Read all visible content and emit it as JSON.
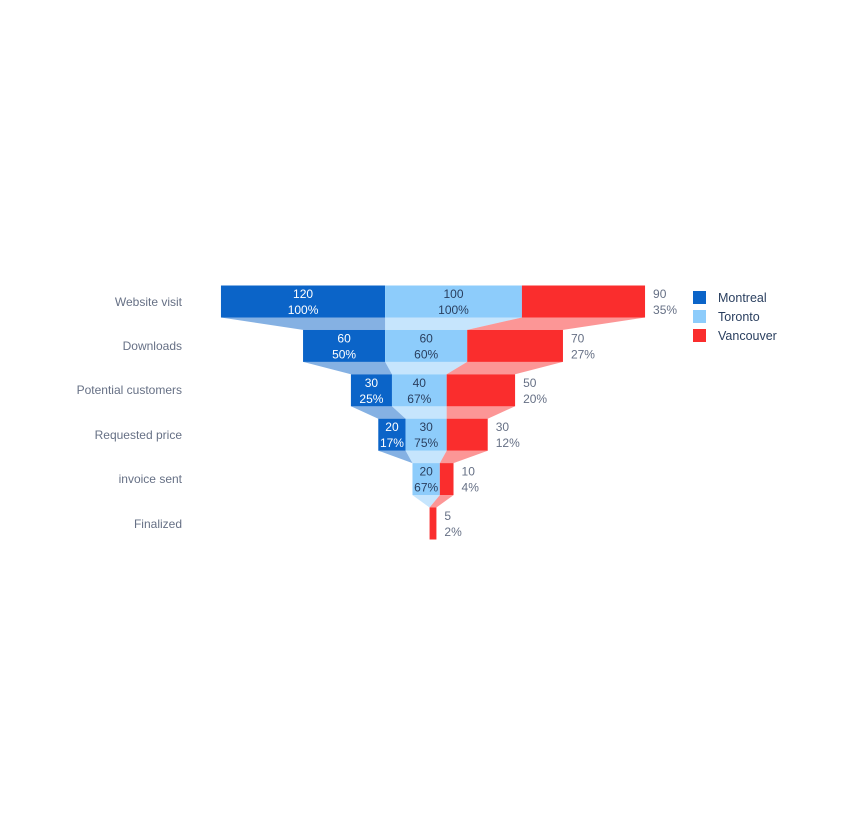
{
  "chart_data": {
    "type": "funnel",
    "variant": "stacked-horizontal-funnel",
    "title": "",
    "categories": [
      "Website visit",
      "Downloads",
      "Potential customers",
      "Requested price",
      "invoice sent",
      "Finalized"
    ],
    "series": [
      {
        "name": "Montreal",
        "color": "#0b64c8",
        "text_color": "#ffffff",
        "textposition": "inside",
        "values": [
          120,
          60,
          30,
          20,
          0,
          0
        ],
        "labels": [
          [
            "120",
            "100%"
          ],
          [
            "60",
            "50%"
          ],
          [
            "30",
            "25%"
          ],
          [
            "20",
            "17%"
          ],
          null,
          null
        ]
      },
      {
        "name": "Toronto",
        "color": "#8dccfb",
        "text_color": "#2a3f5f",
        "textposition": "inside",
        "values": [
          100,
          60,
          40,
          30,
          20,
          0
        ],
        "labels": [
          [
            "100",
            "100%"
          ],
          [
            "60",
            "60%"
          ],
          [
            "40",
            "67%"
          ],
          [
            "30",
            "75%"
          ],
          [
            "20",
            "67%"
          ],
          null
        ]
      },
      {
        "name": "Vancouver",
        "color": "#fa2d2d",
        "text_color": "#667085",
        "textposition": "outside",
        "values": [
          90,
          70,
          50,
          30,
          10,
          5
        ],
        "labels": [
          [
            "90",
            "35%"
          ],
          [
            "70",
            "27%"
          ],
          [
            "50",
            "20%"
          ],
          [
            "30",
            "12%"
          ],
          [
            "10",
            "4%"
          ],
          [
            "5",
            "2%"
          ]
        ]
      }
    ],
    "legend": {
      "position": "top-right"
    },
    "axis_label_color": "#667085",
    "connector_opacity": 0.5,
    "grid": false
  }
}
